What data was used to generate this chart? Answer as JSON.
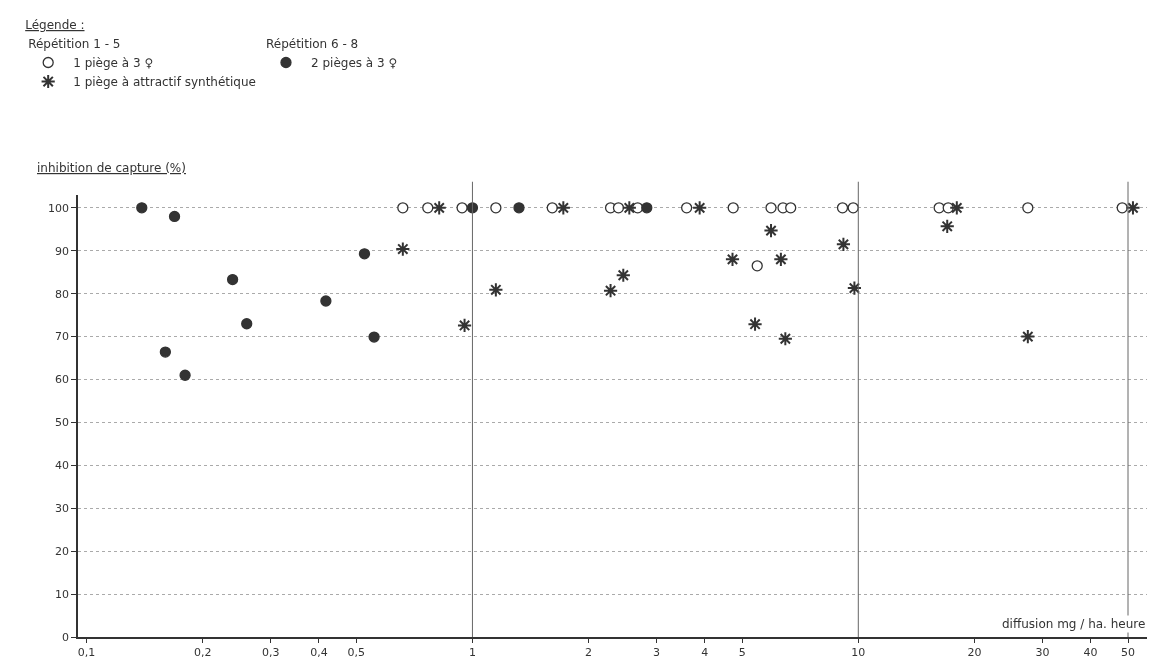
{
  "chart_data": {
    "type": "scatter",
    "legend_title": "Légende :",
    "xlabel": "diffusion mg / ha. heure",
    "ylabel": "inhibition de capture (%)",
    "annotations": [
      "Répétition 1 - 5",
      "Répétition 6 - 8"
    ],
    "log": "x",
    "xlim": [
      0.095,
      56
    ],
    "ylim": [
      0,
      103
    ],
    "xticks": [
      {
        "value": 0.1,
        "label": "0,1"
      },
      {
        "value": 0.2,
        "label": "0,2"
      },
      {
        "value": 0.3,
        "label": "0,3"
      },
      {
        "value": 0.4,
        "label": "0,4"
      },
      {
        "value": 0.5,
        "label": "0,5"
      },
      1,
      2,
      3,
      4,
      5,
      10,
      20,
      30,
      40,
      50
    ],
    "yticks": [
      0,
      10,
      20,
      30,
      40,
      50,
      60,
      70,
      80,
      90,
      100
    ],
    "grid": "y",
    "legend": "top left",
    "ref_lines": [
      {
        "axis": "x",
        "value": 1,
        "label": null
      },
      {
        "axis": "x",
        "value": 10,
        "label": null
      },
      {
        "axis": "x",
        "value": 50,
        "label": null
      }
    ],
    "series": [
      {
        "name": "1 piège à 3 ♀",
        "color": "#ffffff",
        "marker": "circle",
        "x": [
          0.66,
          0.766,
          0.94,
          1.15,
          1.61,
          2.28,
          2.39,
          2.68,
          3.59,
          4.74,
          5.94,
          6.38,
          6.68,
          9.1,
          9.7,
          16.2,
          17.1,
          27.5,
          48.3,
          5.47
        ],
        "values": [
          100,
          100,
          100,
          100,
          100,
          100,
          100,
          100,
          100,
          100,
          100,
          100,
          100,
          100,
          100,
          100,
          100,
          100,
          100,
          86.5
        ]
      },
      {
        "name": "1 piège à attractif synthétique",
        "color": "#333333",
        "marker": "cross",
        "x": [
          0.82,
          0.66,
          0.954,
          1.72,
          1.15,
          2.28,
          2.46,
          2.55,
          3.88,
          4.72,
          5.94,
          6.3,
          5.4,
          6.47,
          9.15,
          9.77,
          18.0,
          17.0,
          27.5,
          51.5
        ],
        "values": [
          100,
          90.4,
          72.6,
          100,
          80.9,
          80.7,
          84.3,
          100,
          100,
          88,
          94.7,
          88,
          72.9,
          69.5,
          91.5,
          81.3,
          100,
          95.7,
          70,
          100
        ]
      },
      {
        "name": "2 pièges à 3 ♀",
        "color": "#333333",
        "marker": "circle",
        "x": [
          0.139,
          0.169,
          0.16,
          0.18,
          0.239,
          0.26,
          0.417,
          0.525,
          0.556,
          1.0,
          1.32,
          2.83
        ],
        "values": [
          100,
          98,
          66.4,
          61,
          83.3,
          73,
          78.3,
          89.3,
          69.9,
          100,
          100,
          100
        ]
      }
    ]
  }
}
